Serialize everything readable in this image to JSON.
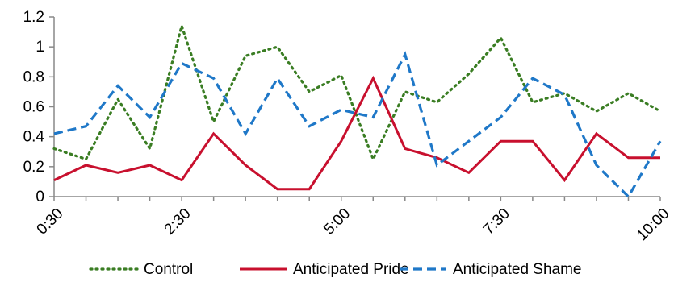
{
  "chart_data": {
    "type": "line",
    "title": "",
    "xlabel": "",
    "ylabel": "",
    "ylim": [
      0,
      1.2
    ],
    "yticks": [
      "0",
      "0.2",
      "0.4",
      "0.6",
      "0.8",
      "1",
      "1.2"
    ],
    "x_tick_labels": [
      "0:30",
      "2:30",
      "5:00",
      "7:30",
      "10:00"
    ],
    "x": [
      "0:30",
      "1:00",
      "1:30",
      "2:00",
      "2:30",
      "3:00",
      "3:30",
      "4:00",
      "4:30",
      "5:00",
      "5:30",
      "6:00",
      "6:30",
      "7:00",
      "7:30",
      "8:00",
      "8:30",
      "9:00",
      "9:30",
      "10:00"
    ],
    "grid": false,
    "legend_position": "bottom",
    "series": [
      {
        "name": "Control",
        "color": "#3a7d23",
        "style": "dotted",
        "values": [
          0.32,
          0.25,
          0.65,
          0.32,
          1.14,
          0.5,
          0.94,
          1.0,
          0.7,
          0.81,
          0.25,
          0.7,
          0.63,
          0.82,
          1.06,
          0.63,
          0.69,
          0.57,
          0.69,
          0.57
        ]
      },
      {
        "name": "Anticipated Pride",
        "color": "#c8102e",
        "style": "solid",
        "values": [
          0.11,
          0.21,
          0.16,
          0.21,
          0.11,
          0.42,
          0.21,
          0.05,
          0.05,
          0.37,
          0.79,
          0.32,
          0.26,
          0.16,
          0.37,
          0.37,
          0.11,
          0.42,
          0.26,
          0.26
        ]
      },
      {
        "name": "Anticipated Shame",
        "color": "#1f78c8",
        "style": "dashed",
        "values": [
          0.42,
          0.47,
          0.74,
          0.53,
          0.89,
          0.79,
          0.42,
          0.79,
          0.47,
          0.58,
          0.53,
          0.95,
          0.21,
          0.37,
          0.53,
          0.79,
          0.68,
          0.21,
          0.0,
          0.37
        ]
      }
    ]
  }
}
